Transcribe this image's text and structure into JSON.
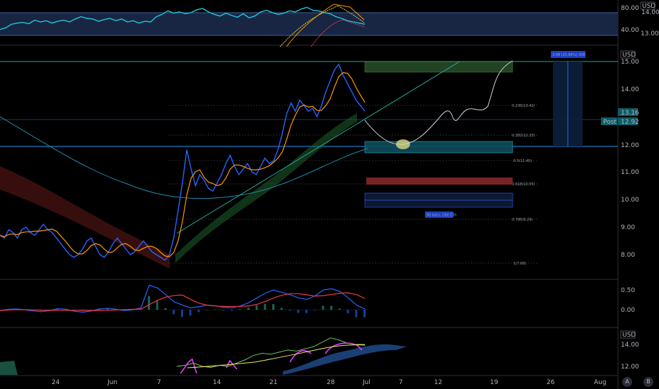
{
  "currency": "USD",
  "controls": {
    "btn_a": "A",
    "btn_b": "B"
  },
  "chart_data": [
    {
      "pane": "rsi",
      "type": "line",
      "y_ticks": [
        "80.00",
        "40.00"
      ],
      "currency_label": "USD",
      "scale_label": "14.00",
      "scale_value": "13.00",
      "series": [
        {
          "values": [
            44,
            47,
            53,
            55,
            56,
            54,
            60,
            57,
            59,
            55,
            58,
            60,
            57,
            62,
            66,
            63,
            62,
            58,
            61,
            63,
            59,
            62,
            57,
            59,
            55,
            58,
            57,
            66,
            70,
            76,
            72,
            74,
            71,
            73,
            78,
            80,
            74,
            70,
            67,
            72,
            68,
            65,
            71,
            64,
            67,
            74,
            77,
            73,
            70,
            72,
            76,
            74,
            79,
            82,
            77,
            76,
            73,
            71,
            66,
            63,
            59,
            57,
            55,
            53
          ]
        }
      ],
      "overbought": 80,
      "oversold": 40
    },
    {
      "pane": "price",
      "type": "line",
      "x_tick_labels": [
        "24",
        "Jun",
        "7",
        "14",
        "21",
        "28",
        "Jul",
        "7",
        "12",
        "19",
        "26",
        "Aug"
      ],
      "y_ticks": [
        "15.00",
        "14.00",
        "12.00",
        "11.00",
        "10.00",
        "9.00",
        "8.00"
      ],
      "currency_label": "USD",
      "last_price": "13.16",
      "position_tag": "Post",
      "position_price": "12.92",
      "measure_label": "3.08 (25.84%) 308",
      "duration_label": "90 bars, 19d 23h",
      "fib_levels": [
        {
          "label": "0.236(13.42)",
          "value": 13.42
        },
        {
          "label": "0.382(12.33)",
          "value": 12.33
        },
        {
          "label": "0.5(11.45)",
          "value": 11.45
        },
        {
          "label": "0.618(10.55)",
          "value": 10.55
        },
        {
          "label": "0.786(9.29)",
          "value": 9.29
        },
        {
          "label": "1(7.68)",
          "value": 7.68
        }
      ],
      "resistance": 15.0,
      "support": 12.0,
      "series": [
        {
          "values": [
            8.7,
            8.6,
            8.9,
            8.8,
            8.6,
            8.9,
            9.0,
            8.8,
            8.7,
            8.9,
            9.1,
            8.9,
            8.8,
            8.6,
            8.4,
            8.2,
            8.0,
            7.9,
            8.0,
            8.2,
            8.5,
            8.6,
            8.3,
            8.0,
            7.9,
            8.1,
            8.4,
            8.6,
            8.4,
            8.2,
            8.0,
            8.1,
            8.3,
            8.5,
            8.3,
            8.1,
            8.0,
            7.9,
            7.8,
            8.0,
            8.6,
            9.6,
            10.6,
            11.8,
            11.1,
            10.5,
            10.9,
            10.7,
            10.4,
            10.3,
            10.6,
            10.9,
            11.3,
            11.6,
            11.2,
            10.9,
            11.1,
            11.3,
            11.0,
            10.9,
            11.2,
            11.5,
            11.3,
            11.4,
            11.8,
            12.4,
            13.1,
            13.5,
            13.2,
            13.6,
            13.4,
            13.2,
            13.3,
            13.0,
            13.4,
            13.9,
            14.3,
            14.7,
            14.9,
            14.5,
            14.2,
            13.9,
            13.6,
            13.4,
            13.2
          ]
        }
      ]
    },
    {
      "pane": "macd",
      "type": "line",
      "y_ticks": [
        "0.50",
        "0.00"
      ],
      "series": [
        {
          "values": [
            -0.02,
            0.01,
            0.02,
            0.0,
            -0.03,
            -0.05,
            -0.02,
            0.03,
            0.01,
            -0.04,
            -0.06,
            -0.03,
            0.02,
            0.04,
            0.01,
            -0.02,
            0.0,
            0.05,
            0.62,
            0.55,
            0.38,
            0.2,
            0.12,
            0.05,
            0.08,
            0.12,
            0.1,
            0.06,
            0.05,
            0.1,
            0.18,
            0.3,
            0.42,
            0.5,
            0.44,
            0.38,
            0.3,
            0.26,
            0.35,
            0.5,
            0.53,
            0.46,
            0.3,
            0.12,
            0.02
          ]
        }
      ]
    },
    {
      "pane": "lower",
      "type": "line",
      "currency_label": "USD",
      "y_ticks": [
        "14.00",
        "12.00"
      ],
      "series": [
        {
          "values": [
            12.0,
            12.1,
            12.3,
            12.0,
            11.9,
            12.1,
            12.0,
            12.3,
            12.6,
            13.0,
            13.2,
            13.1,
            13.3,
            13.5,
            13.4,
            13.6,
            13.8,
            14.2,
            14.6,
            14.4,
            14.1,
            14.0,
            14.0
          ]
        }
      ]
    }
  ]
}
